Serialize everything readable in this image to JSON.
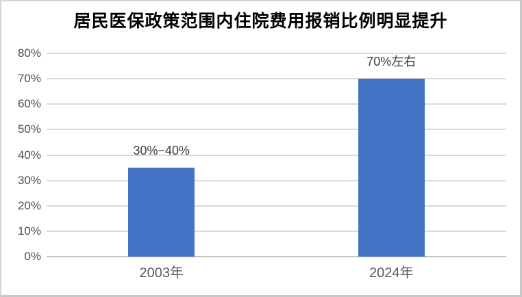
{
  "window": {
    "background": "#ffffff",
    "border_color": "#d4d4d4"
  },
  "chart_data": {
    "type": "bar",
    "title": "居民医保政策范围内住院费用报销比例明显提升",
    "categories": [
      "2003年",
      "2024年"
    ],
    "values": [
      35,
      70
    ],
    "data_labels": [
      "30%−40%",
      "70%左右"
    ],
    "xlabel": "",
    "ylabel": "",
    "ylim": [
      0,
      80
    ],
    "ytick_step": 10,
    "yticks": [
      "0%",
      "10%",
      "20%",
      "30%",
      "40%",
      "50%",
      "60%",
      "70%",
      "80%"
    ],
    "grid": true,
    "legend_position": "none",
    "bar_color": "#4472C4",
    "gridline_color": "#d9d9d9"
  }
}
